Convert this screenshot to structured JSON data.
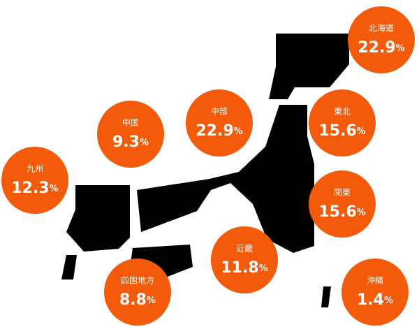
{
  "regions": [
    {
      "name": "北海道",
      "value": 22.9,
      "unit": "%"
    },
    {
      "name": "東北",
      "value": 15.6,
      "unit": "%"
    },
    {
      "name": "関東",
      "value": 15.6,
      "unit": "%"
    },
    {
      "name": "中部",
      "value": 22.9,
      "unit": "%"
    },
    {
      "name": "近畿",
      "value": 11.8,
      "unit": "%"
    },
    {
      "name": "中国",
      "value": 9.3,
      "unit": "%"
    },
    {
      "name": "四国地方",
      "value": 8.8,
      "unit": "%"
    },
    {
      "name": "九州",
      "value": 12.3,
      "unit": "%"
    },
    {
      "name": "沖縄",
      "value": 1.4,
      "unit": "%"
    }
  ]
}
